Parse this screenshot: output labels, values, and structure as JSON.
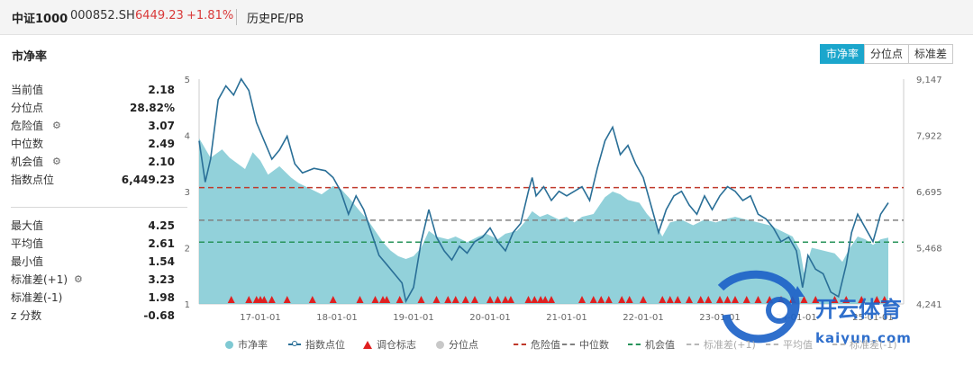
{
  "header": {
    "name": "中证1000",
    "code": "000852.SH",
    "price": "6449.23",
    "change": "+1.81%",
    "link": "历史PE/PB"
  },
  "section_title": "市净率",
  "buttons": [
    {
      "label": "市净率",
      "active": true
    },
    {
      "label": "分位点",
      "active": false
    },
    {
      "label": "标准差",
      "active": false
    }
  ],
  "stats_top": [
    {
      "label": "当前值",
      "value": "2.18",
      "gear": false
    },
    {
      "label": "分位点",
      "value": "28.82%",
      "gear": false
    },
    {
      "label": "危险值",
      "value": "3.07",
      "gear": true
    },
    {
      "label": "中位数",
      "value": "2.49",
      "gear": false
    },
    {
      "label": "机会值",
      "value": "2.10",
      "gear": true
    },
    {
      "label": "指数点位",
      "value": "6,449.23",
      "gear": false
    }
  ],
  "stats_bottom": [
    {
      "label": "最大值",
      "value": "4.25",
      "gear": false
    },
    {
      "label": "平均值",
      "value": "2.61",
      "gear": false
    },
    {
      "label": "最小值",
      "value": "1.54",
      "gear": false
    },
    {
      "label": "标准差(+1)",
      "value": "3.23",
      "gear": true
    },
    {
      "label": "标准差(-1)",
      "value": "1.98",
      "gear": false
    },
    {
      "label": "z 分数",
      "value": "-0.68",
      "gear": false
    }
  ],
  "legend": [
    {
      "label": "市净率",
      "type": "dot",
      "color": "#7fc9d3"
    },
    {
      "label": "指数点位",
      "type": "line",
      "color": "#2a6f97"
    },
    {
      "label": "调仓标志",
      "type": "triangle",
      "color": "#e02020"
    },
    {
      "label": "分位点",
      "type": "dot",
      "color": "#c8c8c8"
    },
    {
      "label": "危险值",
      "type": "dash",
      "color": "#c0392b"
    },
    {
      "label": "中位数",
      "type": "dash",
      "color": "#808080"
    },
    {
      "label": "机会值",
      "type": "dash",
      "color": "#27935a"
    },
    {
      "label": "标准差(+1)",
      "type": "dash",
      "color": "#b8b8b8"
    },
    {
      "label": "平均值",
      "type": "dash",
      "color": "#b8b8b8"
    },
    {
      "label": "标准差(-1)",
      "type": "dash",
      "color": "#b8b8b8"
    }
  ],
  "watermark": {
    "line1": "开云体育",
    "line2": "kaiyun.com"
  },
  "chart_data": {
    "type": "area",
    "x_ticks": [
      "17-01-01",
      "18-01-01",
      "19-01-01",
      "20-01-01",
      "21-01-01",
      "22-01-01",
      "23-01-01",
      "24-01-01",
      "25-01-01"
    ],
    "x_range": [
      2016.2,
      2025.4
    ],
    "y_left": {
      "ticks": [
        "1",
        "2",
        "3",
        "4",
        "5"
      ],
      "range": [
        1,
        5
      ]
    },
    "y_right": {
      "ticks": [
        "9,147",
        "7,922",
        "6,695",
        "5,468",
        "4,241"
      ],
      "range": [
        4241,
        9147
      ]
    },
    "reference_lines": [
      {
        "name": "危险值",
        "value": 3.07,
        "color": "#c0392b"
      },
      {
        "name": "中位数",
        "value": 2.49,
        "color": "#808080"
      },
      {
        "name": "机会值",
        "value": 2.1,
        "color": "#27935a"
      }
    ],
    "series": [
      {
        "name": "市净率",
        "type": "area",
        "color": "#7fc9d3",
        "points": [
          [
            2016.2,
            3.95
          ],
          [
            2016.35,
            3.6
          ],
          [
            2016.5,
            3.75
          ],
          [
            2016.6,
            3.6
          ],
          [
            2016.8,
            3.4
          ],
          [
            2016.9,
            3.7
          ],
          [
            2017.0,
            3.55
          ],
          [
            2017.1,
            3.3
          ],
          [
            2017.25,
            3.45
          ],
          [
            2017.4,
            3.25
          ],
          [
            2017.5,
            3.15
          ],
          [
            2017.65,
            3.05
          ],
          [
            2017.8,
            2.95
          ],
          [
            2017.95,
            3.1
          ],
          [
            2018.05,
            3.05
          ],
          [
            2018.15,
            2.9
          ],
          [
            2018.3,
            2.65
          ],
          [
            2018.4,
            2.5
          ],
          [
            2018.5,
            2.3
          ],
          [
            2018.6,
            2.1
          ],
          [
            2018.7,
            1.95
          ],
          [
            2018.8,
            1.85
          ],
          [
            2018.9,
            1.8
          ],
          [
            2019.0,
            1.85
          ],
          [
            2019.1,
            2.0
          ],
          [
            2019.2,
            2.3
          ],
          [
            2019.3,
            2.2
          ],
          [
            2019.45,
            2.15
          ],
          [
            2019.55,
            2.2
          ],
          [
            2019.7,
            2.1
          ],
          [
            2019.85,
            2.2
          ],
          [
            2019.95,
            2.25
          ],
          [
            2020.1,
            2.15
          ],
          [
            2020.2,
            2.25
          ],
          [
            2020.35,
            2.3
          ],
          [
            2020.45,
            2.45
          ],
          [
            2020.55,
            2.65
          ],
          [
            2020.65,
            2.55
          ],
          [
            2020.75,
            2.6
          ],
          [
            2020.9,
            2.5
          ],
          [
            2021.0,
            2.55
          ],
          [
            2021.1,
            2.45
          ],
          [
            2021.2,
            2.55
          ],
          [
            2021.35,
            2.6
          ],
          [
            2021.5,
            2.9
          ],
          [
            2021.6,
            3.0
          ],
          [
            2021.7,
            2.95
          ],
          [
            2021.8,
            2.85
          ],
          [
            2021.95,
            2.8
          ],
          [
            2022.05,
            2.6
          ],
          [
            2022.15,
            2.45
          ],
          [
            2022.25,
            2.2
          ],
          [
            2022.35,
            2.45
          ],
          [
            2022.5,
            2.5
          ],
          [
            2022.65,
            2.4
          ],
          [
            2022.8,
            2.5
          ],
          [
            2022.95,
            2.45
          ],
          [
            2023.05,
            2.5
          ],
          [
            2023.2,
            2.55
          ],
          [
            2023.35,
            2.5
          ],
          [
            2023.5,
            2.45
          ],
          [
            2023.65,
            2.4
          ],
          [
            2023.8,
            2.3
          ],
          [
            2023.95,
            2.2
          ],
          [
            2024.05,
            1.95
          ],
          [
            2024.1,
            1.55
          ],
          [
            2024.2,
            2.0
          ],
          [
            2024.35,
            1.95
          ],
          [
            2024.5,
            1.9
          ],
          [
            2024.6,
            1.75
          ],
          [
            2024.7,
            2.0
          ],
          [
            2024.8,
            2.2
          ],
          [
            2024.9,
            2.15
          ],
          [
            2025.0,
            2.05
          ],
          [
            2025.1,
            2.15
          ],
          [
            2025.2,
            2.18
          ]
        ]
      },
      {
        "name": "指数点位",
        "type": "line",
        "axis": "right",
        "color": "#2a6f97",
        "points": [
          [
            2016.2,
            7800
          ],
          [
            2016.28,
            6900
          ],
          [
            2016.35,
            7400
          ],
          [
            2016.45,
            8700
          ],
          [
            2016.55,
            9000
          ],
          [
            2016.65,
            8800
          ],
          [
            2016.75,
            9150
          ],
          [
            2016.85,
            8900
          ],
          [
            2016.95,
            8200
          ],
          [
            2017.05,
            7800
          ],
          [
            2017.15,
            7400
          ],
          [
            2017.25,
            7600
          ],
          [
            2017.35,
            7900
          ],
          [
            2017.45,
            7300
          ],
          [
            2017.55,
            7100
          ],
          [
            2017.7,
            7200
          ],
          [
            2017.85,
            7150
          ],
          [
            2017.95,
            7000
          ],
          [
            2018.05,
            6700
          ],
          [
            2018.15,
            6200
          ],
          [
            2018.25,
            6600
          ],
          [
            2018.35,
            6300
          ],
          [
            2018.45,
            5800
          ],
          [
            2018.55,
            5300
          ],
          [
            2018.65,
            5100
          ],
          [
            2018.75,
            4900
          ],
          [
            2018.85,
            4700
          ],
          [
            2018.9,
            4300
          ],
          [
            2019.0,
            4600
          ],
          [
            2019.1,
            5600
          ],
          [
            2019.2,
            6300
          ],
          [
            2019.3,
            5700
          ],
          [
            2019.4,
            5400
          ],
          [
            2019.5,
            5200
          ],
          [
            2019.6,
            5500
          ],
          [
            2019.7,
            5350
          ],
          [
            2019.8,
            5600
          ],
          [
            2019.9,
            5700
          ],
          [
            2020.0,
            5900
          ],
          [
            2020.1,
            5600
          ],
          [
            2020.2,
            5400
          ],
          [
            2020.3,
            5800
          ],
          [
            2020.4,
            6000
          ],
          [
            2020.5,
            6700
          ],
          [
            2020.55,
            7000
          ],
          [
            2020.6,
            6600
          ],
          [
            2020.7,
            6800
          ],
          [
            2020.8,
            6500
          ],
          [
            2020.9,
            6700
          ],
          [
            2021.0,
            6600
          ],
          [
            2021.1,
            6700
          ],
          [
            2021.2,
            6800
          ],
          [
            2021.3,
            6500
          ],
          [
            2021.4,
            7200
          ],
          [
            2021.5,
            7800
          ],
          [
            2021.6,
            8100
          ],
          [
            2021.7,
            7500
          ],
          [
            2021.8,
            7700
          ],
          [
            2021.9,
            7300
          ],
          [
            2022.0,
            7000
          ],
          [
            2022.1,
            6400
          ],
          [
            2022.2,
            5800
          ],
          [
            2022.3,
            6300
          ],
          [
            2022.4,
            6600
          ],
          [
            2022.5,
            6700
          ],
          [
            2022.6,
            6400
          ],
          [
            2022.7,
            6200
          ],
          [
            2022.8,
            6600
          ],
          [
            2022.9,
            6300
          ],
          [
            2023.0,
            6600
          ],
          [
            2023.1,
            6800
          ],
          [
            2023.2,
            6700
          ],
          [
            2023.3,
            6500
          ],
          [
            2023.4,
            6600
          ],
          [
            2023.5,
            6200
          ],
          [
            2023.6,
            6100
          ],
          [
            2023.7,
            5900
          ],
          [
            2023.8,
            5600
          ],
          [
            2023.9,
            5700
          ],
          [
            2024.0,
            5400
          ],
          [
            2024.08,
            4600
          ],
          [
            2024.15,
            5300
          ],
          [
            2024.25,
            5000
          ],
          [
            2024.35,
            4900
          ],
          [
            2024.45,
            4500
          ],
          [
            2024.55,
            4400
          ],
          [
            2024.65,
            5100
          ],
          [
            2024.72,
            5800
          ],
          [
            2024.8,
            6200
          ],
          [
            2024.9,
            5900
          ],
          [
            2025.0,
            5600
          ],
          [
            2025.1,
            6200
          ],
          [
            2025.2,
            6449
          ]
        ]
      }
    ],
    "signals": [
      2016.62,
      2016.85,
      2016.95,
      2017.0,
      2017.05,
      2017.15,
      2017.35,
      2017.68,
      2017.95,
      2018.3,
      2018.5,
      2018.6,
      2018.65,
      2018.82,
      2019.1,
      2019.3,
      2019.45,
      2019.55,
      2019.68,
      2019.8,
      2020.0,
      2020.1,
      2020.2,
      2020.27,
      2020.5,
      2020.58,
      2020.66,
      2020.72,
      2020.8,
      2021.2,
      2021.35,
      2021.45,
      2021.55,
      2021.72,
      2021.82,
      2022.0,
      2022.25,
      2022.35,
      2022.45,
      2022.6,
      2022.75,
      2022.85,
      2023.0,
      2023.1,
      2023.2,
      2023.35,
      2023.5,
      2023.65,
      2023.8,
      2023.95,
      2024.1,
      2024.25,
      2024.5,
      2024.65,
      2024.85,
      2025.05,
      2025.15
    ]
  }
}
